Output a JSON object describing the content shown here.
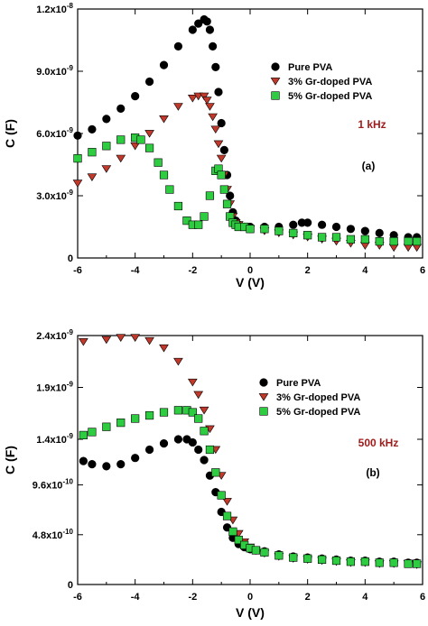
{
  "chart_data": [
    {
      "type": "scatter",
      "panel_label": "(a)",
      "frequency_label": "1 kHz",
      "xlabel": "V (V)",
      "ylabel": "C (F)",
      "xlim": [
        -6,
        6
      ],
      "ylim": [
        0,
        1.2e-08
      ],
      "x_ticks": [
        -6,
        -4,
        -2,
        0,
        2,
        4,
        6
      ],
      "x_tick_labels": [
        "-6",
        "-4",
        "-2",
        "0",
        "2",
        "4",
        "6"
      ],
      "y_ticks": [
        0,
        3e-09,
        6e-09,
        9e-09,
        1.2e-08
      ],
      "y_tick_labels": [
        {
          "mantissa": "0",
          "exp": ""
        },
        {
          "mantissa": "3.0x10",
          "exp": "-9"
        },
        {
          "mantissa": "6.0x10",
          "exp": "-9"
        },
        {
          "mantissa": "9.0x10",
          "exp": "-9"
        },
        {
          "mantissa": "1.2x10",
          "exp": "-8"
        }
      ],
      "legend_position": "top-right",
      "series": [
        {
          "name": "Pure PVA",
          "marker": "circle",
          "color": "#000000",
          "x": [
            -6.0,
            -5.5,
            -5.0,
            -4.5,
            -4.0,
            -3.5,
            -3.0,
            -2.5,
            -2.0,
            -1.8,
            -1.6,
            -1.5,
            -1.4,
            -1.3,
            -1.2,
            -1.1,
            -1.0,
            -0.9,
            -0.8,
            -0.7,
            -0.6,
            -0.5,
            -0.4,
            -0.2,
            0.0,
            0.5,
            1.0,
            1.5,
            1.8,
            2.0,
            2.5,
            3.0,
            3.5,
            4.0,
            4.5,
            5.0,
            5.5,
            5.8
          ],
          "y": [
            5.9e-09,
            6.2e-09,
            6.7e-09,
            7.2e-09,
            7.8e-09,
            8.5e-09,
            9.3e-09,
            1.02e-08,
            1.1e-08,
            1.13e-08,
            1.15e-08,
            1.14e-08,
            1.1e-08,
            1.02e-08,
            9.2e-09,
            8e-09,
            6.5e-09,
            5.2e-09,
            4e-09,
            3e-09,
            2.2e-09,
            1.8e-09,
            1.6e-09,
            1.5e-09,
            1.5e-09,
            1.5e-09,
            1.5e-09,
            1.6e-09,
            1.7e-09,
            1.7e-09,
            1.6e-09,
            1.5e-09,
            1.4e-09,
            1.3e-09,
            1.2e-09,
            1.1e-09,
            1e-09,
            1e-09
          ]
        },
        {
          "name": "3% Gr-doped PVA",
          "marker": "triangle-down",
          "color": "#c0392b",
          "x": [
            -6.0,
            -5.5,
            -5.0,
            -4.5,
            -4.0,
            -3.5,
            -3.0,
            -2.5,
            -2.0,
            -1.8,
            -1.6,
            -1.5,
            -1.4,
            -1.3,
            -1.2,
            -1.1,
            -1.0,
            -0.9,
            -0.8,
            -0.7,
            -0.6,
            -0.5,
            -0.4,
            -0.2,
            0.0,
            0.5,
            1.0,
            1.5,
            2.0,
            2.5,
            3.0,
            3.5,
            4.0,
            4.5,
            5.0,
            5.5,
            5.8
          ],
          "y": [
            3.6e-09,
            3.9e-09,
            4.3e-09,
            4.8e-09,
            5.4e-09,
            6e-09,
            6.7e-09,
            7.3e-09,
            7.7e-09,
            7.8e-09,
            7.8e-09,
            7.6e-09,
            7.3e-09,
            6.8e-09,
            6.2e-09,
            5.5e-09,
            4.8e-09,
            4e-09,
            3.3e-09,
            2.6e-09,
            2e-09,
            1.7e-09,
            1.6e-09,
            1.5e-09,
            1.4e-09,
            1.3e-09,
            1.2e-09,
            1.1e-09,
            1e-09,
            9e-10,
            8e-10,
            7e-10,
            6e-10,
            6e-10,
            5e-10,
            5e-10,
            5e-10
          ]
        },
        {
          "name": "5% Gr-doped PVA",
          "marker": "square",
          "color": "#2ecc40",
          "x": [
            -6.0,
            -5.5,
            -5.0,
            -4.5,
            -4.0,
            -3.8,
            -3.5,
            -3.2,
            -3.0,
            -2.8,
            -2.5,
            -2.2,
            -2.0,
            -1.8,
            -1.6,
            -1.4,
            -1.2,
            -1.1,
            -1.0,
            -0.9,
            -0.8,
            -0.7,
            -0.6,
            -0.5,
            -0.4,
            -0.2,
            0.0,
            0.5,
            1.0,
            1.5,
            2.0,
            2.5,
            3.0,
            3.5,
            4.0,
            4.5,
            5.0,
            5.5,
            5.8
          ],
          "y": [
            4.8e-09,
            5.1e-09,
            5.4e-09,
            5.7e-09,
            5.8e-09,
            5.7e-09,
            5.3e-09,
            4.6e-09,
            4e-09,
            3.3e-09,
            2.5e-09,
            1.8e-09,
            1.6e-09,
            1.6e-09,
            2e-09,
            3e-09,
            4.2e-09,
            4.3e-09,
            4e-09,
            3.3e-09,
            2.6e-09,
            2e-09,
            1.7e-09,
            1.6e-09,
            1.5e-09,
            1.5e-09,
            1.4e-09,
            1.4e-09,
            1.3e-09,
            1.2e-09,
            1.1e-09,
            1e-09,
            1e-09,
            9e-10,
            9e-10,
            8e-10,
            8e-10,
            8e-10,
            8e-10
          ]
        }
      ]
    },
    {
      "type": "scatter",
      "panel_label": "(b)",
      "frequency_label": "500 kHz",
      "xlabel": "V (V)",
      "ylabel": "C (F)",
      "xlim": [
        -6,
        6
      ],
      "ylim": [
        0,
        2.4e-09
      ],
      "x_ticks": [
        -6,
        -4,
        -2,
        0,
        2,
        4,
        6
      ],
      "x_tick_labels": [
        "-6",
        "-4",
        "-2",
        "0",
        "2",
        "4",
        "6"
      ],
      "y_ticks": [
        0,
        4.8e-10,
        9.6e-10,
        1.4e-09,
        1.9e-09,
        2.4e-09
      ],
      "y_tick_labels": [
        {
          "mantissa": "0",
          "exp": ""
        },
        {
          "mantissa": "4.8x10",
          "exp": "-10"
        },
        {
          "mantissa": "9.6x10",
          "exp": "-10"
        },
        {
          "mantissa": "1.4x10",
          "exp": "-9"
        },
        {
          "mantissa": "1.9x10",
          "exp": "-9"
        },
        {
          "mantissa": "2.4x10",
          "exp": "-9"
        }
      ],
      "legend_position": "top-right",
      "series": [
        {
          "name": "Pure PVA",
          "marker": "circle",
          "color": "#000000",
          "x": [
            -5.8,
            -5.5,
            -5.0,
            -4.5,
            -4.0,
            -3.5,
            -3.0,
            -2.5,
            -2.2,
            -2.0,
            -1.8,
            -1.6,
            -1.4,
            -1.2,
            -1.0,
            -0.8,
            -0.6,
            -0.4,
            -0.2,
            0.0,
            0.2,
            0.5,
            1.0,
            1.5,
            2.0,
            2.5,
            3.0,
            3.5,
            4.0,
            4.5,
            5.0,
            5.5,
            5.8
          ],
          "y": [
            1.19e-09,
            1.16e-09,
            1.14e-09,
            1.16e-09,
            1.22e-09,
            1.3e-09,
            1.36e-09,
            1.4e-09,
            1.4e-09,
            1.37e-09,
            1.3e-09,
            1.2e-09,
            1.05e-09,
            8.9e-10,
            7e-10,
            5.5e-10,
            4.5e-10,
            3.9e-10,
            3.6e-10,
            3.4e-10,
            3.3e-10,
            3.2e-10,
            2.9e-10,
            2.7e-10,
            2.6e-10,
            2.5e-10,
            2.4e-10,
            2.3e-10,
            2.3e-10,
            2.2e-10,
            2.2e-10,
            2.1e-10,
            2.1e-10
          ]
        },
        {
          "name": "3% Gr-doped PVA",
          "marker": "triangle-down",
          "color": "#c0392b",
          "x": [
            -5.8,
            -5.0,
            -4.5,
            -4.0,
            -3.5,
            -3.0,
            -2.5,
            -2.0,
            -1.8,
            -1.6,
            -1.4,
            -1.2,
            -1.0,
            -0.8,
            -0.6,
            -0.4,
            -0.2,
            0.0,
            0.2,
            0.5,
            1.0,
            1.5,
            2.0,
            2.5,
            3.0,
            3.5,
            4.0,
            4.5,
            5.0,
            5.5,
            5.8
          ],
          "y": [
            2.34e-09,
            2.36e-09,
            2.38e-09,
            2.38e-09,
            2.35e-09,
            2.28e-09,
            2.15e-09,
            1.95e-09,
            1.83e-09,
            1.68e-09,
            1.5e-09,
            1.3e-09,
            1.05e-09,
            8e-10,
            6.2e-10,
            4.9e-10,
            4.1e-10,
            3.6e-10,
            3.3e-10,
            3e-10,
            2.7e-10,
            2.5e-10,
            2.4e-10,
            2.3e-10,
            2.2e-10,
            2.1e-10,
            2.1e-10,
            2e-10,
            2e-10,
            2e-10,
            1.9e-10
          ]
        },
        {
          "name": "5% Gr-doped PVA",
          "marker": "square",
          "color": "#2ecc40",
          "x": [
            -5.8,
            -5.5,
            -5.0,
            -4.5,
            -4.0,
            -3.5,
            -3.0,
            -2.5,
            -2.2,
            -2.0,
            -1.8,
            -1.6,
            -1.4,
            -1.2,
            -1.0,
            -0.8,
            -0.6,
            -0.4,
            -0.2,
            0.0,
            0.2,
            0.5,
            1.0,
            1.5,
            2.0,
            2.5,
            3.0,
            3.5,
            4.0,
            4.5,
            5.0,
            5.5,
            5.8
          ],
          "y": [
            1.44e-09,
            1.47e-09,
            1.52e-09,
            1.56e-09,
            1.6e-09,
            1.63e-09,
            1.66e-09,
            1.68e-09,
            1.68e-09,
            1.66e-09,
            1.6e-09,
            1.48e-09,
            1.3e-09,
            1.08e-09,
            8.6e-10,
            6.6e-10,
            5.1e-10,
            4.3e-10,
            3.8e-10,
            3.5e-10,
            3.3e-10,
            3.1e-10,
            2.8e-10,
            2.6e-10,
            2.5e-10,
            2.4e-10,
            2.3e-10,
            2.2e-10,
            2.2e-10,
            2.1e-10,
            2.1e-10,
            2e-10,
            2e-10
          ]
        }
      ]
    }
  ]
}
